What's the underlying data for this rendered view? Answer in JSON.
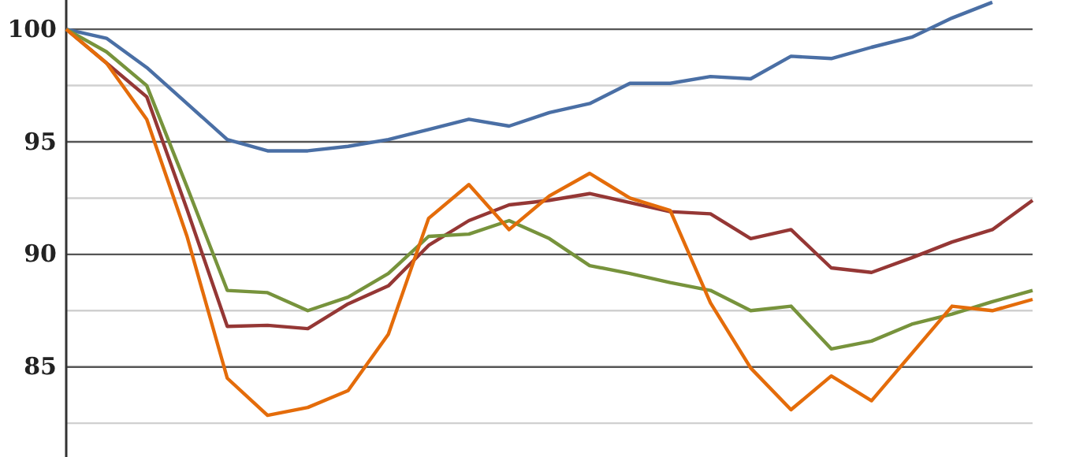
{
  "chart_data": {
    "type": "line",
    "categories": [
      null,
      null,
      null,
      null,
      null,
      null,
      null,
      null,
      null,
      null,
      null,
      null,
      null,
      null,
      null,
      null,
      null,
      null,
      null,
      null,
      null,
      null,
      null,
      null,
      null
    ],
    "series": [
      {
        "color": "#4a6fa5",
        "values": [
          100,
          99.6,
          98.3,
          96.7,
          95.1,
          94.6,
          94.6,
          94.8,
          95.1,
          95.55,
          96.0,
          95.7,
          96.3,
          96.7,
          97.6,
          97.6,
          97.9,
          97.8,
          98.8,
          98.7,
          99.2,
          99.65,
          100.5,
          101.2,
          null
        ]
      },
      {
        "color": "#953735",
        "values": [
          100,
          98.5,
          97.0,
          92.0,
          86.8,
          86.85,
          86.7,
          87.8,
          88.6,
          90.4,
          91.5,
          92.2,
          92.4,
          92.7,
          92.3,
          91.9,
          91.8,
          90.7,
          91.1,
          89.4,
          89.2,
          89.85,
          90.55,
          91.1,
          92.4
        ]
      },
      {
        "color": "#77933c",
        "values": [
          100,
          99.0,
          97.5,
          93.0,
          88.4,
          88.3,
          87.5,
          88.1,
          89.15,
          90.8,
          90.9,
          91.5,
          90.7,
          89.5,
          89.15,
          88.75,
          88.4,
          87.5,
          87.7,
          85.8,
          86.15,
          86.9,
          87.35,
          87.9,
          88.4
        ]
      },
      {
        "color": "#e46c0a",
        "values": [
          100,
          98.5,
          96.0,
          90.8,
          84.5,
          82.85,
          83.2,
          83.95,
          86.45,
          91.6,
          93.1,
          91.1,
          92.6,
          93.6,
          92.5,
          91.95,
          87.85,
          84.95,
          83.1,
          84.6,
          83.5,
          85.6,
          87.7,
          87.5,
          88.0
        ]
      }
    ],
    "ylim": [
      81,
      101.3
    ],
    "yticks": [
      {
        "value": 82.5,
        "label": null
      },
      85,
      {
        "value": 87.5,
        "label": null
      },
      90,
      {
        "value": 92.5,
        "label": null
      },
      95,
      {
        "value": 97.5,
        "label": null
      },
      100
    ],
    "grid": "y",
    "tick_labels": "y",
    "marker": "none",
    "line_style": "solid"
  }
}
